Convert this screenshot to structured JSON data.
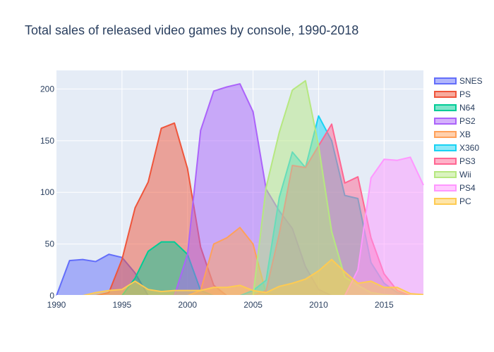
{
  "chart_data": {
    "type": "area",
    "title": "Total sales of released video games by console, 1990-2018",
    "xlabel": "",
    "ylabel": "",
    "xlim": [
      1990,
      2018
    ],
    "ylim": [
      0,
      218
    ],
    "x_ticks": [
      1990,
      1995,
      2000,
      2005,
      2010,
      2015
    ],
    "y_ticks": [
      0,
      50,
      100,
      150,
      200
    ],
    "grid": true,
    "legend_position": "right",
    "x": [
      1990,
      1991,
      1992,
      1993,
      1994,
      1995,
      1996,
      1997,
      1998,
      1999,
      2000,
      2001,
      2002,
      2003,
      2004,
      2005,
      2006,
      2007,
      2008,
      2009,
      2010,
      2011,
      2012,
      2013,
      2014,
      2015,
      2016,
      2017,
      2018
    ],
    "series": [
      {
        "name": "SNES",
        "color": "#636efa",
        "values": [
          0,
          34,
          35,
          33,
          40,
          37,
          22,
          0,
          0,
          0,
          0,
          0,
          0,
          0,
          0,
          0,
          0,
          0,
          0,
          0,
          0,
          0,
          0,
          0,
          0,
          0,
          0,
          0,
          0
        ]
      },
      {
        "name": "PS",
        "color": "#ef553b",
        "values": [
          0,
          0,
          0,
          0,
          3,
          35,
          85,
          110,
          162,
          167,
          123,
          47,
          10,
          0,
          0,
          0,
          0,
          0,
          0,
          0,
          0,
          0,
          0,
          0,
          0,
          0,
          0,
          0,
          0
        ]
      },
      {
        "name": "N64",
        "color": "#00cc96",
        "values": [
          0,
          0,
          0,
          0,
          0,
          0,
          17,
          43,
          52,
          52,
          40,
          5,
          0,
          0,
          0,
          0,
          0,
          0,
          0,
          0,
          0,
          0,
          0,
          0,
          0,
          0,
          0,
          0,
          0
        ]
      },
      {
        "name": "PS2",
        "color": "#ab63fa",
        "values": [
          0,
          0,
          0,
          0,
          0,
          0,
          0,
          0,
          0,
          0,
          40,
          160,
          198,
          202,
          205,
          178,
          103,
          82,
          65,
          28,
          6,
          0,
          0,
          0,
          0,
          0,
          0,
          0,
          0
        ]
      },
      {
        "name": "XB",
        "color": "#ffa15a",
        "values": [
          0,
          0,
          0,
          0,
          0,
          0,
          0,
          0,
          0,
          0,
          0,
          5,
          50,
          56,
          66,
          50,
          2,
          0,
          0,
          0,
          0,
          0,
          0,
          0,
          0,
          0,
          0,
          0,
          0
        ]
      },
      {
        "name": "X360",
        "color": "#19d3f3",
        "values": [
          0,
          0,
          0,
          0,
          0,
          0,
          0,
          0,
          0,
          0,
          0,
          0,
          0,
          0,
          0,
          5,
          15,
          95,
          139,
          124,
          174,
          150,
          97,
          94,
          32,
          12,
          3,
          0,
          0
        ]
      },
      {
        "name": "PS3",
        "color": "#ff6692",
        "values": [
          0,
          0,
          0,
          0,
          0,
          0,
          0,
          0,
          0,
          0,
          0,
          0,
          0,
          0,
          0,
          0,
          5,
          60,
          126,
          124,
          145,
          166,
          109,
          115,
          56,
          21,
          5,
          0,
          0
        ]
      },
      {
        "name": "Wii",
        "color": "#b6e880",
        "values": [
          0,
          0,
          0,
          0,
          0,
          0,
          0,
          0,
          0,
          0,
          0,
          0,
          0,
          0,
          0,
          0,
          105,
          158,
          199,
          208,
          145,
          62,
          18,
          10,
          3,
          1,
          0,
          0,
          0
        ]
      },
      {
        "name": "PS4",
        "color": "#ff97ff",
        "values": [
          0,
          0,
          0,
          0,
          0,
          0,
          0,
          0,
          0,
          0,
          0,
          0,
          0,
          0,
          0,
          0,
          0,
          0,
          0,
          0,
          0,
          0,
          0,
          25,
          114,
          132,
          131,
          134,
          107
        ]
      },
      {
        "name": "PC",
        "color": "#fecb52",
        "values": [
          0,
          0,
          0,
          3,
          5,
          6,
          14,
          6,
          4,
          5,
          5,
          5,
          8,
          8,
          10,
          5,
          3,
          9,
          12,
          16,
          24,
          35,
          23,
          12,
          14,
          8,
          8,
          2,
          1
        ]
      }
    ]
  }
}
